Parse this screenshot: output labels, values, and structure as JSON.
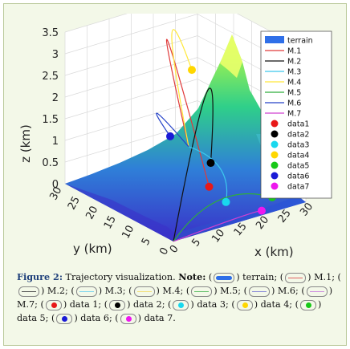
{
  "chart_data": {
    "type": "3d-line",
    "xlabel": "x (km)",
    "ylabel": "y (km)",
    "zlabel": "z (km)",
    "x_ticks": [
      "0",
      "5",
      "10",
      "15",
      "20",
      "25",
      "30"
    ],
    "y_ticks": [
      "0",
      "5",
      "10",
      "15",
      "20",
      "25",
      "30"
    ],
    "z_ticks": [
      "0",
      "0.5",
      "1",
      "1.5",
      "2",
      "2.5",
      "3",
      "3.5"
    ],
    "xlim": [
      0,
      30
    ],
    "ylim": [
      0,
      30
    ],
    "zlim": [
      0,
      3.5
    ],
    "legend_position": "top-right",
    "terrain": {
      "name": "terrain",
      "color": "#2f6fe8"
    },
    "trajectories": [
      {
        "name": "M.1",
        "color": "#e03a3a",
        "start": [
          28,
          30,
          0
        ],
        "peak": [
          15,
          20,
          3.3
        ],
        "end": [
          13,
          6,
          0.6
        ]
      },
      {
        "name": "M.2",
        "color": "#111111",
        "start": [
          0,
          0,
          0
        ],
        "peak": [
          15,
          9,
          2.6
        ],
        "end": [
          15,
          8,
          1.0
        ]
      },
      {
        "name": "M.3",
        "color": "#3cc6ec",
        "start": [
          28,
          30,
          0
        ],
        "peak": [
          22,
          14,
          0.4
        ],
        "end": [
          16,
          5,
          0.2
        ]
      },
      {
        "name": "M.4",
        "color": "#ffe83a",
        "start": [
          28,
          30,
          0
        ],
        "peak": [
          16,
          20,
          3.4
        ],
        "end": [
          14,
          12,
          3.0
        ]
      },
      {
        "name": "M.5",
        "color": "#2fae3a",
        "start": [
          0,
          0,
          0
        ],
        "peak": [
          12,
          2,
          0.5
        ],
        "end": [
          24,
          2,
          0.2
        ]
      },
      {
        "name": "M.6",
        "color": "#2442c8",
        "start": [
          28,
          30,
          0
        ],
        "peak": [
          16,
          24,
          1.4
        ],
        "end": [
          14,
          18,
          1.2
        ]
      },
      {
        "name": "M.7",
        "color": "#d040d0",
        "start": [
          0,
          0,
          0
        ],
        "peak": [
          14,
          0,
          0.1
        ],
        "end": [
          20,
          0,
          0.1
        ]
      }
    ],
    "data_markers": [
      {
        "name": "data1",
        "color": "#e81818",
        "point": [
          13,
          6,
          0.6
        ]
      },
      {
        "name": "data2",
        "color": "#000000",
        "point": [
          15,
          8,
          1.0
        ]
      },
      {
        "name": "data3",
        "color": "#19d8ee",
        "point": [
          16,
          5,
          0.2
        ]
      },
      {
        "name": "data4",
        "color": "#ffd700",
        "point": [
          14,
          12,
          3.0
        ]
      },
      {
        "name": "data5",
        "color": "#18c818",
        "point": [
          24,
          2,
          0.2
        ]
      },
      {
        "name": "data6",
        "color": "#1b1bd6",
        "point": [
          14,
          18,
          1.2
        ]
      },
      {
        "name": "data7",
        "color": "#ee18ee",
        "point": [
          20,
          0,
          0.1
        ]
      }
    ]
  },
  "caption": {
    "figure_label": "Figure 2:",
    "title": "Trajectory visualization.",
    "note_label": "Note:",
    "items": [
      {
        "kind": "terrain",
        "label": "terrain;",
        "color": "#2f6fe8"
      },
      {
        "kind": "line",
        "label": "M.1;",
        "color": "#e06060"
      },
      {
        "kind": "line",
        "label": "M.2;",
        "color": "#555555"
      },
      {
        "kind": "line",
        "label": "M.3;",
        "color": "#7fd6ee"
      },
      {
        "kind": "line",
        "label": "M.4;",
        "color": "#f3e07a"
      },
      {
        "kind": "line",
        "label": "M.5;",
        "color": "#62c06a"
      },
      {
        "kind": "line",
        "label": "M.6;",
        "color": "#8a8ad8"
      },
      {
        "kind": "line",
        "label": "M.7;",
        "color": "#cf8fdf"
      },
      {
        "kind": "dot",
        "label": "data 1;",
        "color": "#e81818"
      },
      {
        "kind": "dot",
        "label": "data 2;",
        "color": "#000000"
      },
      {
        "kind": "dot",
        "label": "data 3;",
        "color": "#19d8ee"
      },
      {
        "kind": "dot",
        "label": "data 4;",
        "color": "#ffd700"
      },
      {
        "kind": "dot",
        "label": "data 5;",
        "color": "#18c818"
      },
      {
        "kind": "dot",
        "label": "data 6;",
        "color": "#1b1bd6"
      },
      {
        "kind": "dot",
        "label": "data 7.",
        "color": "#ee18ee"
      }
    ]
  }
}
